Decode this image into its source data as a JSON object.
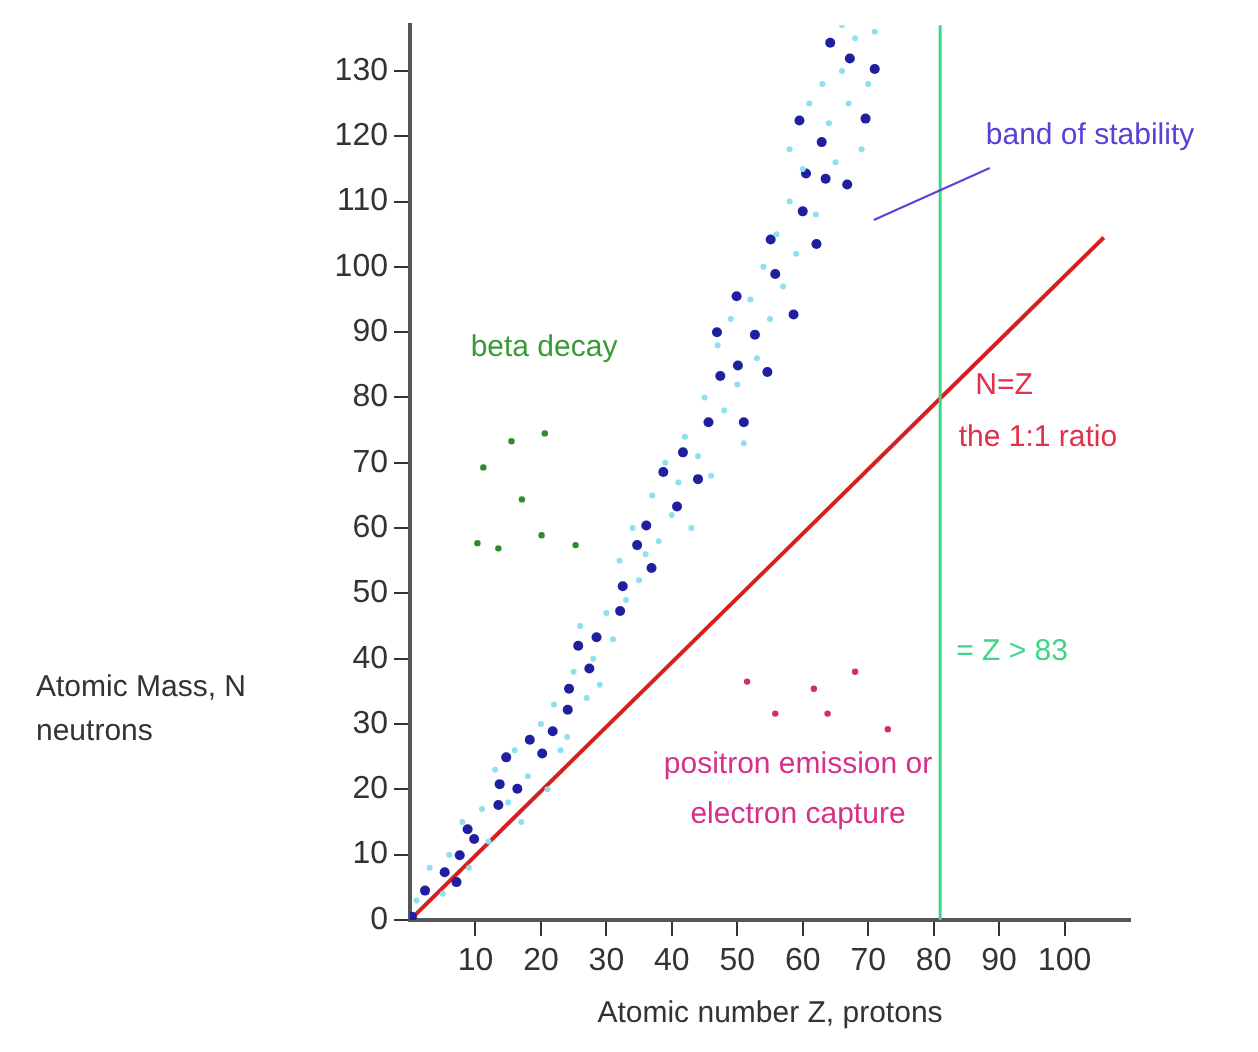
{
  "chart_data": {
    "type": "scatter",
    "xlabel": "Atomic number Z, protons",
    "ylabel": "Atomic Mass, N neutrons",
    "xlim": [
      0,
      110
    ],
    "ylim": [
      0,
      137
    ],
    "xticks": [
      10,
      20,
      30,
      40,
      50,
      60,
      70,
      80,
      90,
      100
    ],
    "yticks": [
      0,
      10,
      20,
      30,
      40,
      50,
      60,
      70,
      80,
      90,
      100,
      110,
      120,
      130
    ],
    "grid": false,
    "legend": false,
    "marker": "circle",
    "series": [
      {
        "color": "#8fe0ee",
        "x": [
          1,
          3,
          5,
          6,
          8,
          9,
          11,
          12,
          13,
          15,
          16,
          17,
          18,
          20,
          21,
          22,
          23,
          25,
          24,
          26,
          27,
          28,
          30,
          29,
          31,
          32,
          33,
          34,
          35,
          36,
          37,
          38,
          39,
          40,
          41,
          42,
          43,
          44,
          45,
          46,
          47,
          48,
          49,
          50,
          51,
          52,
          53,
          54,
          55,
          56,
          57,
          58,
          58,
          59,
          60,
          61,
          62,
          63,
          64,
          65,
          66,
          67,
          68,
          69,
          70,
          66,
          71
        ],
        "values": [
          3,
          8,
          4,
          10,
          15,
          8,
          17,
          12,
          23,
          18,
          26,
          15,
          22,
          30,
          20,
          33,
          26,
          38,
          28,
          45,
          34,
          40,
          47,
          36,
          43,
          55,
          49,
          60,
          52,
          56,
          65,
          58,
          70,
          62,
          67,
          74,
          60,
          71,
          80,
          68,
          88,
          78,
          92,
          82,
          73,
          95,
          86,
          100,
          92,
          105,
          97,
          110,
          118,
          102,
          115,
          125,
          108,
          128,
          122,
          116,
          130,
          125,
          135,
          118,
          128,
          137,
          136
        ]
      },
      {
        "color": "#1f1fa0",
        "x": [
          64.2,
          67.2,
          71,
          59.5,
          69.6,
          62.9,
          60.5,
          63.5,
          66.8,
          60,
          55.1,
          62.1,
          55.8,
          49.9,
          58.6,
          46.9,
          52.7,
          50.1,
          47.4,
          54.6,
          45.6,
          51,
          41.7,
          38.7,
          44,
          40.8,
          36.1,
          34.7,
          36.9,
          32.5,
          32.1,
          25.7,
          28.5,
          27.4,
          24.3,
          24.1,
          21.8,
          18.3,
          20.2,
          14.7,
          13.7,
          16.4,
          13.5,
          8.8,
          9.8,
          7.6,
          5.3,
          2.3,
          7.1,
          0.3
        ],
        "values": [
          134.3,
          131.9,
          130.3,
          122.4,
          122.7,
          119.1,
          114.3,
          113.5,
          112.6,
          108.5,
          104.2,
          103.5,
          98.9,
          95.5,
          92.7,
          90,
          89.6,
          84.9,
          83.3,
          83.9,
          76.2,
          76.2,
          71.6,
          68.6,
          67.5,
          63.3,
          60.4,
          57.4,
          53.9,
          51.1,
          47.3,
          42,
          43.3,
          38.5,
          35.4,
          32.2,
          28.9,
          27.6,
          25.5,
          24.9,
          20.8,
          20.1,
          17.6,
          13.9,
          12.4,
          9.9,
          7.3,
          4.5,
          5.8,
          0.5
        ]
      },
      {
        "color": "#2e8b2e",
        "x": [
          11.2,
          15.5,
          20.6,
          17.1,
          20.1,
          10.3,
          13.5,
          25.3
        ],
        "values": [
          69.3,
          73.3,
          74.5,
          64.4,
          58.9,
          57.7,
          56.9,
          57.4
        ]
      },
      {
        "color": "#d0306a",
        "x": [
          51.5,
          55.8,
          61.7,
          63.8,
          68,
          73
        ],
        "values": [
          36.5,
          31.6,
          35.4,
          31.6,
          38,
          29.2
        ]
      },
      {
        "type": "line",
        "marker": "none",
        "color": "#d62020",
        "x": [
          0,
          106
        ],
        "values": [
          0,
          104.5
        ]
      }
    ],
    "ref_lines": [
      {
        "axis": "x",
        "value": 81,
        "label": "= Z > 83",
        "color": "#3fd68a"
      }
    ],
    "annotations": [
      "band of stability",
      "beta decay",
      "N=Z",
      "the 1:1 ratio",
      "positron emission or\nelectron capture"
    ]
  }
}
